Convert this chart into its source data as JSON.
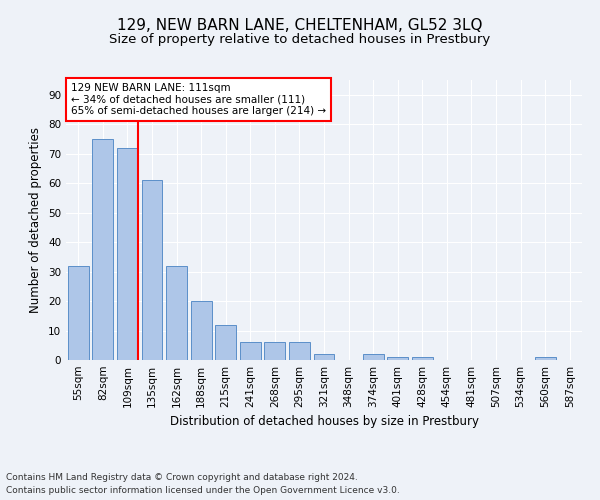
{
  "title": "129, NEW BARN LANE, CHELTENHAM, GL52 3LQ",
  "subtitle": "Size of property relative to detached houses in Prestbury",
  "xlabel": "Distribution of detached houses by size in Prestbury",
  "ylabel": "Number of detached properties",
  "footnote1": "Contains HM Land Registry data © Crown copyright and database right 2024.",
  "footnote2": "Contains public sector information licensed under the Open Government Licence v3.0.",
  "bar_labels": [
    "55sqm",
    "82sqm",
    "109sqm",
    "135sqm",
    "162sqm",
    "188sqm",
    "215sqm",
    "241sqm",
    "268sqm",
    "295sqm",
    "321sqm",
    "348sqm",
    "374sqm",
    "401sqm",
    "428sqm",
    "454sqm",
    "481sqm",
    "507sqm",
    "534sqm",
    "560sqm",
    "587sqm"
  ],
  "bar_values": [
    32,
    75,
    72,
    61,
    32,
    20,
    12,
    6,
    6,
    6,
    2,
    0,
    2,
    1,
    1,
    0,
    0,
    0,
    0,
    1,
    0
  ],
  "bar_color": "#aec6e8",
  "bar_edge_color": "#5b8fc9",
  "red_line_bar_index": 2,
  "annotation_box_text": "129 NEW BARN LANE: 111sqm\n← 34% of detached houses are smaller (111)\n65% of semi-detached houses are larger (214) →",
  "annotation_box_fc": "white",
  "annotation_box_ec": "red",
  "ylim": [
    0,
    95
  ],
  "yticks": [
    0,
    10,
    20,
    30,
    40,
    50,
    60,
    70,
    80,
    90
  ],
  "background_color": "#eef2f8",
  "grid_color": "white",
  "title_fontsize": 11,
  "subtitle_fontsize": 9.5,
  "axis_label_fontsize": 8.5,
  "tick_fontsize": 7.5,
  "annotation_fontsize": 7.5,
  "footnote_fontsize": 6.5
}
